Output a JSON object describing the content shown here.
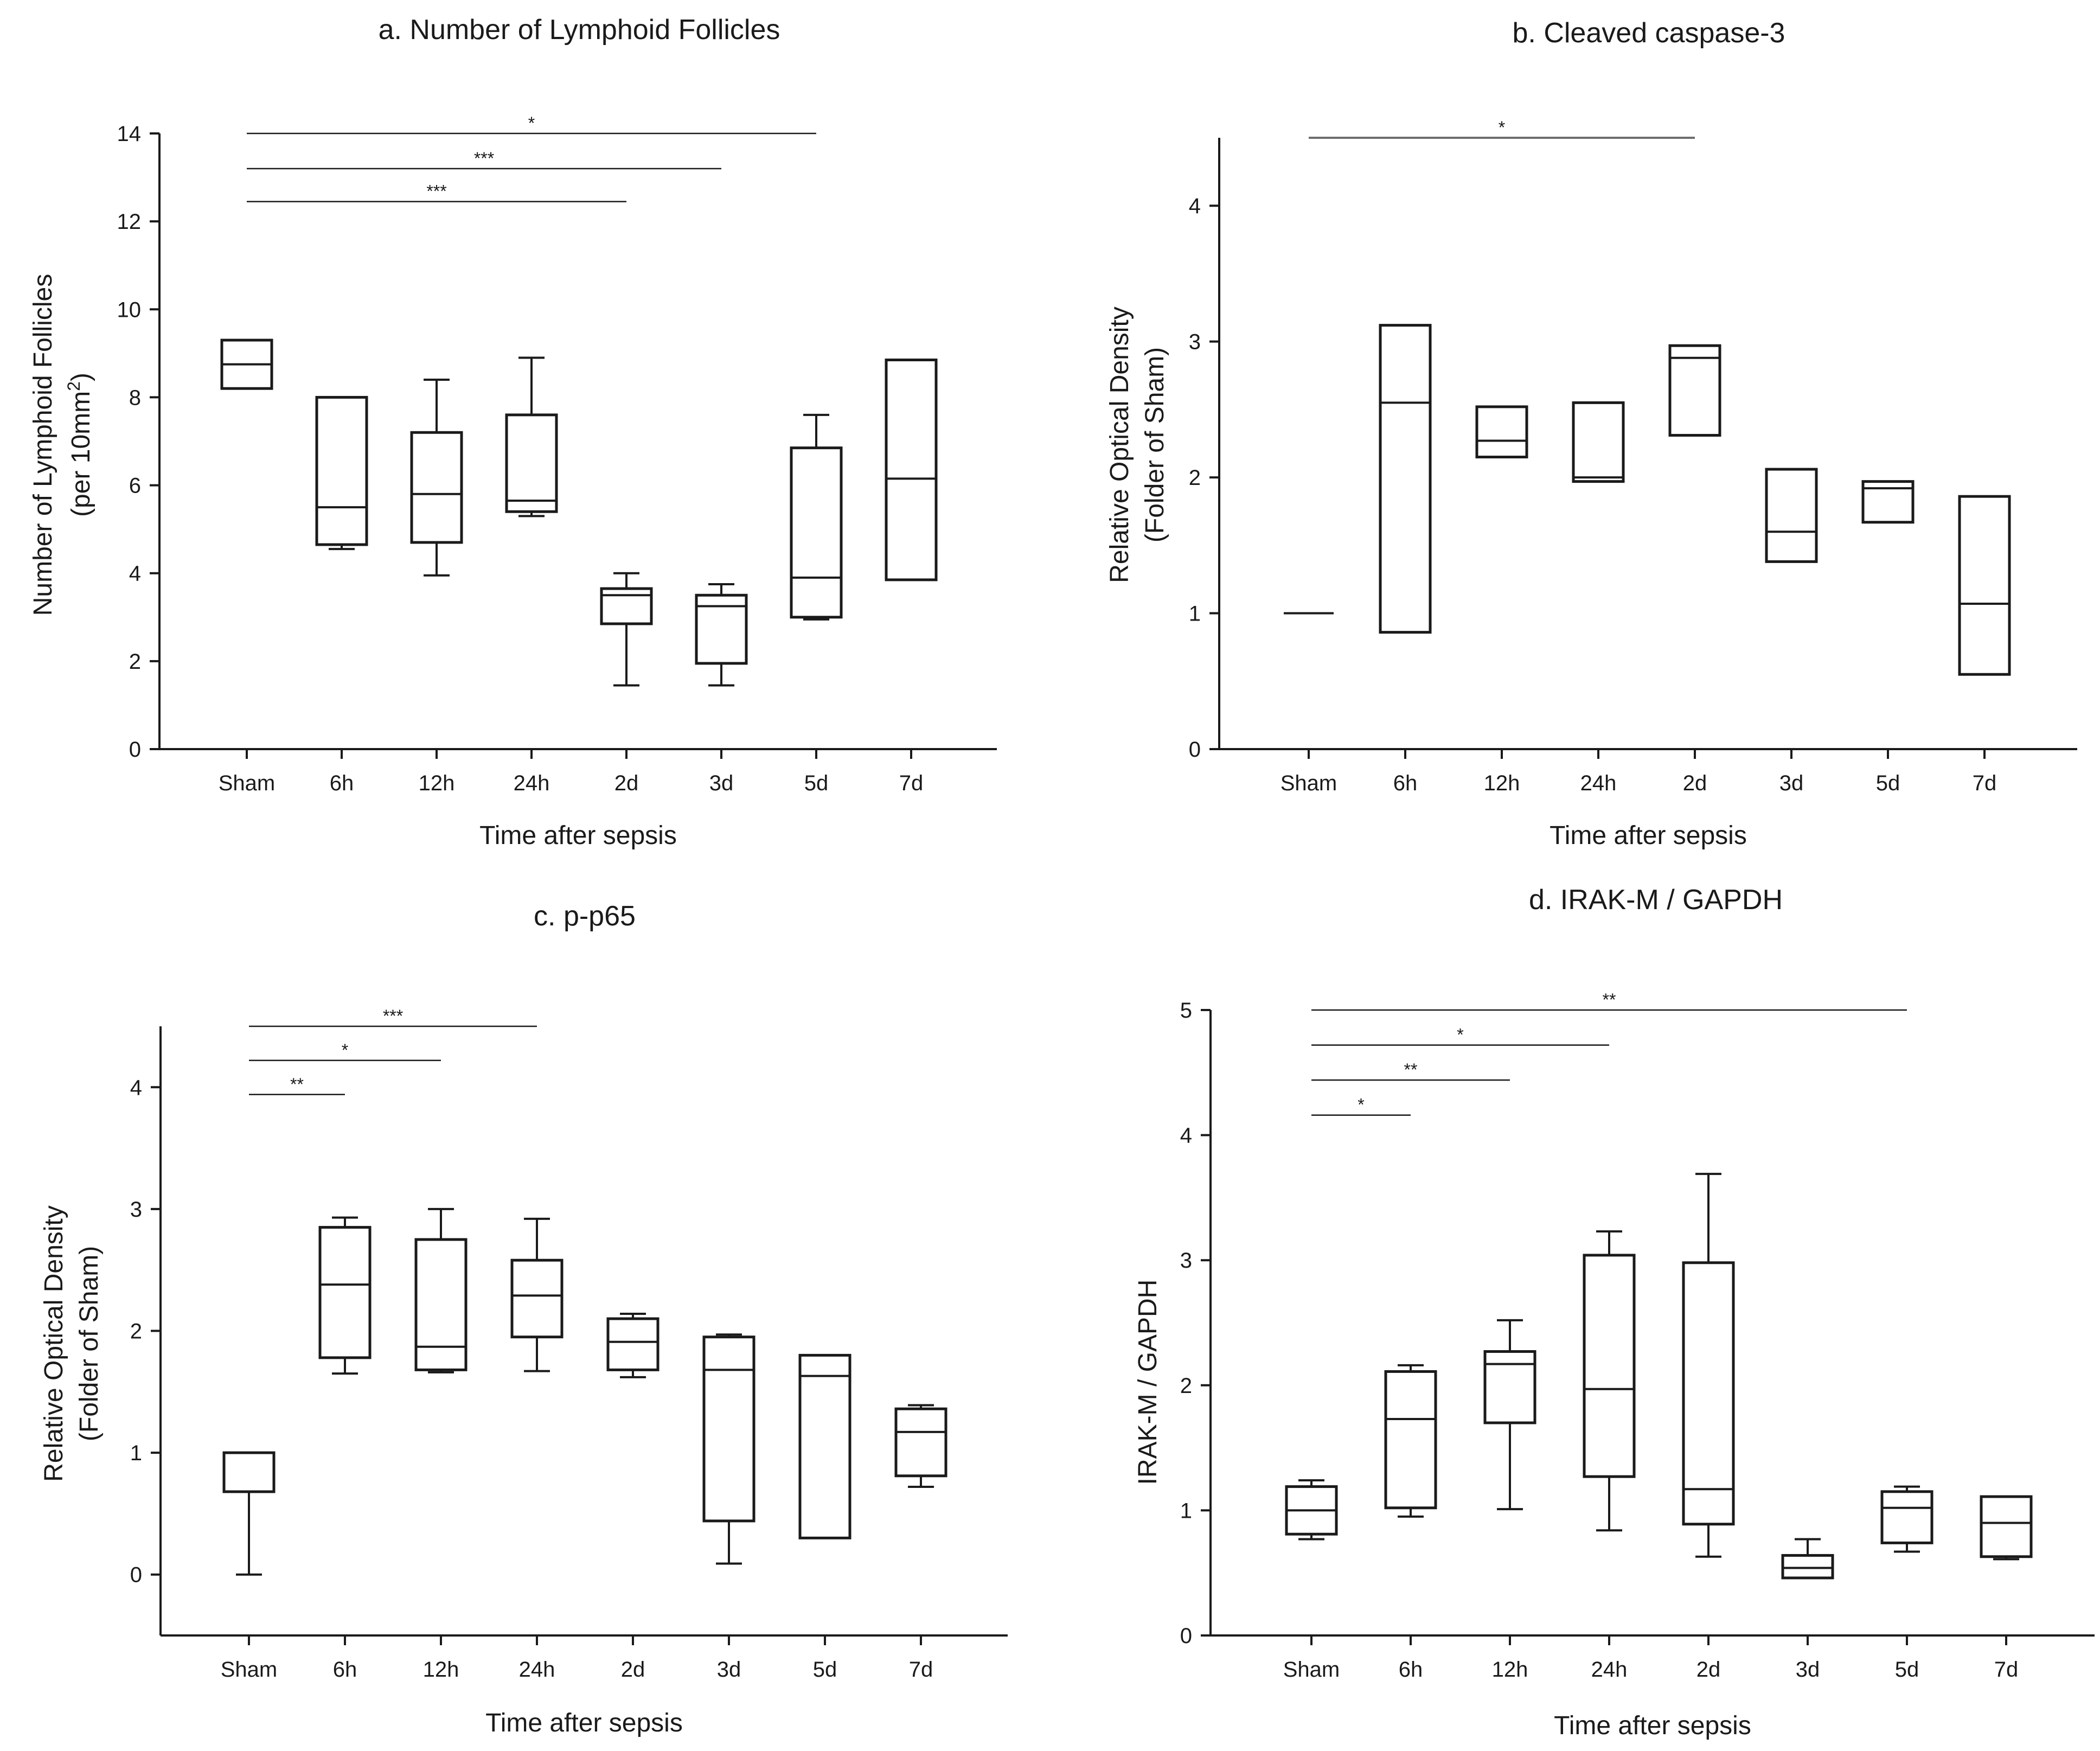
{
  "chart_data": [
    {
      "id": "a",
      "type": "box",
      "title": "a. Number of Lymphoid Follicles",
      "xlabel": "Time after sepsis",
      "ylabel": [
        "Number of Lymphoid Follicles",
        "(per 10mm²)"
      ],
      "ylim": [
        0,
        14
      ],
      "yticks": [
        0,
        2,
        4,
        6,
        8,
        10,
        12,
        14
      ],
      "categories": [
        "Sham",
        "6h",
        "12h",
        "24h",
        "2d",
        "3d",
        "5d",
        "7d"
      ],
      "boxes": [
        {
          "min": 8.2,
          "q1": 8.2,
          "median": 8.75,
          "q3": 9.3,
          "max": 9.3
        },
        {
          "min": 4.55,
          "q1": 4.65,
          "median": 5.5,
          "q3": 8.0,
          "max": 8.0
        },
        {
          "min": 3.95,
          "q1": 4.7,
          "median": 5.8,
          "q3": 7.2,
          "max": 8.4
        },
        {
          "min": 5.3,
          "q1": 5.4,
          "median": 5.65,
          "q3": 7.6,
          "max": 8.9
        },
        {
          "min": 1.45,
          "q1": 2.85,
          "median": 3.5,
          "q3": 3.65,
          "max": 4.0
        },
        {
          "min": 1.45,
          "q1": 1.95,
          "median": 3.25,
          "q3": 3.5,
          "max": 3.75
        },
        {
          "min": 2.95,
          "q1": 3.0,
          "median": 3.9,
          "q3": 6.85,
          "max": 7.6
        },
        {
          "min": 3.85,
          "q1": 3.85,
          "median": 6.15,
          "q3": 8.85,
          "max": 8.85
        }
      ],
      "significance": [
        {
          "from": "Sham",
          "to": "5d",
          "label": "*",
          "y": 14.0
        },
        {
          "from": "Sham",
          "to": "3d",
          "label": "***",
          "y": 13.2
        },
        {
          "from": "Sham",
          "to": "2d",
          "label": "***",
          "y": 12.45
        }
      ]
    },
    {
      "id": "b",
      "type": "box",
      "title": "b. Cleaved caspase-3",
      "xlabel": "Time after sepsis",
      "ylabel": [
        "Relative Optical Density",
        "(Folder of Sham)"
      ],
      "ylim": [
        0,
        4.5
      ],
      "yticks": [
        0,
        1,
        2,
        3,
        4
      ],
      "categories": [
        "Sham",
        "6h",
        "12h",
        "24h",
        "2d",
        "3d",
        "5d",
        "7d"
      ],
      "boxes": [
        {
          "min": 1.0,
          "q1": 1.0,
          "median": 1.0,
          "q3": 1.0,
          "max": 1.0
        },
        {
          "min": 0.86,
          "q1": 0.86,
          "median": 2.55,
          "q3": 3.12,
          "max": 3.12
        },
        {
          "min": 2.15,
          "q1": 2.15,
          "median": 2.27,
          "q3": 2.52,
          "max": 2.52
        },
        {
          "min": 1.97,
          "q1": 1.97,
          "median": 2.0,
          "q3": 2.55,
          "max": 2.55
        },
        {
          "min": 2.31,
          "q1": 2.31,
          "median": 2.88,
          "q3": 2.97,
          "max": 2.97
        },
        {
          "min": 1.38,
          "q1": 1.38,
          "median": 1.6,
          "q3": 2.06,
          "max": 2.06
        },
        {
          "min": 1.67,
          "q1": 1.67,
          "median": 1.92,
          "q3": 1.97,
          "max": 1.97
        },
        {
          "min": 0.55,
          "q1": 0.55,
          "median": 1.07,
          "q3": 1.86,
          "max": 1.86
        }
      ],
      "significance": [
        {
          "from": "Sham",
          "to": "2d",
          "label": "*",
          "y": 4.5,
          "color": "#6e6e6e"
        }
      ]
    },
    {
      "id": "c",
      "type": "box",
      "title": "c. p-p65",
      "xlabel": "Time after sepsis",
      "ylabel": [
        "Relative Optical Density",
        "(Folder of Sham)"
      ],
      "ylim": [
        -0.5,
        4.5
      ],
      "yticks": [
        0,
        1,
        2,
        3,
        4
      ],
      "categories": [
        "Sham",
        "6h",
        "12h",
        "24h",
        "2d",
        "3d",
        "5d",
        "7d"
      ],
      "boxes": [
        {
          "min": 0.0,
          "q1": 0.68,
          "median": 0.68,
          "q3": 1.0,
          "max": 1.0
        },
        {
          "min": 1.65,
          "q1": 1.78,
          "median": 2.38,
          "q3": 2.85,
          "max": 2.93
        },
        {
          "min": 1.66,
          "q1": 1.68,
          "median": 1.87,
          "q3": 2.75,
          "max": 3.0
        },
        {
          "min": 1.67,
          "q1": 1.95,
          "median": 2.29,
          "q3": 2.58,
          "max": 2.92
        },
        {
          "min": 1.62,
          "q1": 1.68,
          "median": 1.91,
          "q3": 2.1,
          "max": 2.14
        },
        {
          "min": 0.09,
          "q1": 0.44,
          "median": 1.68,
          "q3": 1.95,
          "max": 1.97
        },
        {
          "min": 0.3,
          "q1": 0.3,
          "median": 1.63,
          "q3": 1.8,
          "max": 1.8
        },
        {
          "min": 0.72,
          "q1": 0.81,
          "median": 1.17,
          "q3": 1.36,
          "max": 1.39
        }
      ],
      "significance": [
        {
          "from": "Sham",
          "to": "24h",
          "label": "***",
          "y": 4.5
        },
        {
          "from": "Sham",
          "to": "12h",
          "label": "*",
          "y": 4.22
        },
        {
          "from": "Sham",
          "to": "6h",
          "label": "**",
          "y": 3.94
        }
      ]
    },
    {
      "id": "d",
      "type": "box",
      "title": "d. IRAK-M / GAPDH",
      "xlabel": "Time after sepsis",
      "ylabel": [
        "IRAK-M / GAPDH"
      ],
      "ylim": [
        0,
        5
      ],
      "yticks": [
        0,
        1,
        2,
        3,
        4,
        5
      ],
      "categories": [
        "Sham",
        "6h",
        "12h",
        "24h",
        "2d",
        "3d",
        "5d",
        "7d"
      ],
      "boxes": [
        {
          "min": 0.77,
          "q1": 0.81,
          "median": 1.0,
          "q3": 1.19,
          "max": 1.24
        },
        {
          "min": 0.95,
          "q1": 1.02,
          "median": 1.73,
          "q3": 2.11,
          "max": 2.16
        },
        {
          "min": 1.01,
          "q1": 1.7,
          "median": 2.17,
          "q3": 2.27,
          "max": 2.52
        },
        {
          "min": 0.84,
          "q1": 1.27,
          "median": 1.97,
          "q3": 3.04,
          "max": 3.23
        },
        {
          "min": 0.63,
          "q1": 0.89,
          "median": 1.17,
          "q3": 2.98,
          "max": 3.69
        },
        {
          "min": 0.46,
          "q1": 0.46,
          "median": 0.54,
          "q3": 0.64,
          "max": 0.77
        },
        {
          "min": 0.67,
          "q1": 0.74,
          "median": 1.02,
          "q3": 1.15,
          "max": 1.19
        },
        {
          "min": 0.61,
          "q1": 0.63,
          "median": 0.9,
          "q3": 1.11,
          "max": 1.11
        }
      ],
      "significance": [
        {
          "from": "Sham",
          "to": "5d",
          "label": "**",
          "y": 5.0
        },
        {
          "from": "Sham",
          "to": "24h",
          "label": "*",
          "y": 4.72
        },
        {
          "from": "Sham",
          "to": "12h",
          "label": "**",
          "y": 4.44
        },
        {
          "from": "Sham",
          "to": "6h",
          "label": "*",
          "y": 4.16
        }
      ]
    }
  ]
}
